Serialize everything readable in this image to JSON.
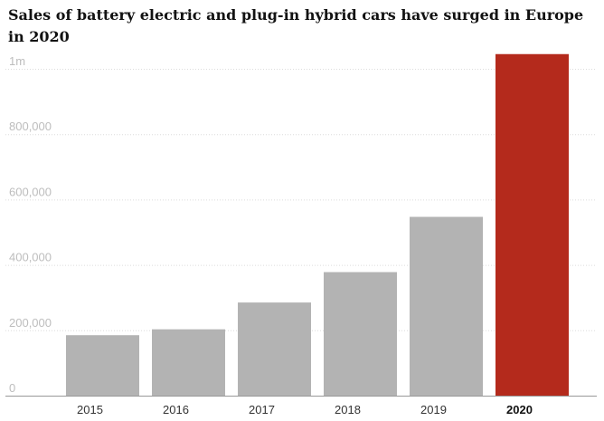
{
  "chart_data": {
    "type": "bar",
    "title": "Sales of battery electric and plug-in hybrid cars have surged in Europe in 2020",
    "xlabel": "",
    "ylabel": "",
    "categories": [
      "2015",
      "2016",
      "2017",
      "2018",
      "2019",
      "2020"
    ],
    "values": [
      185000,
      203000,
      285000,
      378000,
      547000,
      1045000
    ],
    "ylim": [
      0,
      1000000
    ],
    "yticks": [
      0,
      200000,
      400000,
      600000,
      800000,
      1000000
    ],
    "ytick_labels": [
      "0",
      "200,000",
      "400,000",
      "600,000",
      "800,000",
      "1m"
    ],
    "grid": true,
    "legend": "none",
    "colors": {
      "bar": "#b3b3b3",
      "highlight_bar": "#b42a1c",
      "gridline": "#dcdcdc",
      "tick_label": "#bdbdbd"
    },
    "highlight_category": "2020"
  }
}
